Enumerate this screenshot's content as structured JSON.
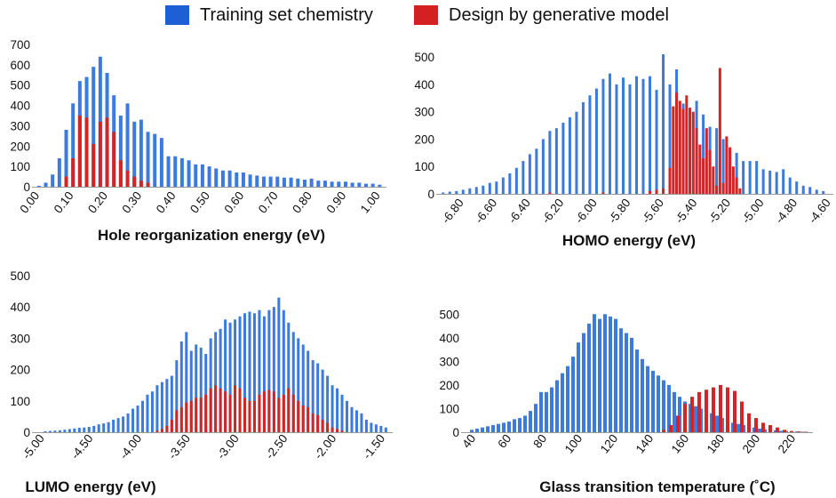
{
  "legend": {
    "items": [
      {
        "label": "Training set chemistry",
        "color": "#1f5fd6"
      },
      {
        "label": "Design by generative model",
        "color": "#d42020"
      }
    ]
  },
  "colors": {
    "training": "#3b7be0",
    "design": "#d42525",
    "axis": "#9a9a9a"
  },
  "chart_data": [
    {
      "type": "bar",
      "title": "",
      "xlabel": "Hole reorganization energy (eV)",
      "ylabel": "",
      "xlim": [
        0.0,
        1.03
      ],
      "ylim": [
        0,
        700
      ],
      "xticks": [
        0.0,
        0.1,
        0.2,
        0.3,
        0.4,
        0.5,
        0.6,
        0.7,
        0.8,
        0.9,
        1.0
      ],
      "xtick_labels": [
        "0.00",
        "0.10",
        "0.20",
        "0.30",
        "0.40",
        "0.50",
        "0.60",
        "0.70",
        "0.80",
        "0.90",
        "1.00"
      ],
      "yticks": [
        0,
        100,
        200,
        300,
        400,
        500,
        600,
        700
      ],
      "ytick_labels": [
        "0",
        "100",
        "200",
        "300",
        "400",
        "500",
        "600",
        "700"
      ],
      "series": [
        {
          "name": "Training set chemistry",
          "color_key": "training",
          "x": [
            0.01,
            0.03,
            0.05,
            0.07,
            0.09,
            0.11,
            0.13,
            0.15,
            0.17,
            0.19,
            0.21,
            0.23,
            0.25,
            0.27,
            0.29,
            0.31,
            0.33,
            0.35,
            0.37,
            0.39,
            0.41,
            0.43,
            0.45,
            0.47,
            0.49,
            0.51,
            0.53,
            0.55,
            0.57,
            0.59,
            0.61,
            0.63,
            0.65,
            0.67,
            0.69,
            0.71,
            0.73,
            0.75,
            0.77,
            0.79,
            0.81,
            0.83,
            0.85,
            0.87,
            0.89,
            0.91,
            0.93,
            0.95,
            0.97,
            0.99,
            1.01
          ],
          "values": [
            5,
            20,
            60,
            140,
            280,
            410,
            520,
            540,
            590,
            640,
            560,
            450,
            350,
            410,
            320,
            330,
            270,
            260,
            240,
            150,
            150,
            140,
            130,
            110,
            110,
            100,
            90,
            80,
            80,
            70,
            70,
            60,
            55,
            50,
            50,
            50,
            45,
            45,
            40,
            35,
            40,
            30,
            30,
            25,
            25,
            25,
            20,
            20,
            15,
            15,
            10
          ]
        },
        {
          "name": "Design by generative model",
          "color_key": "design",
          "x": [
            0.09,
            0.11,
            0.13,
            0.15,
            0.17,
            0.19,
            0.21,
            0.23,
            0.25,
            0.27,
            0.29,
            0.31,
            0.33
          ],
          "values": [
            50,
            140,
            350,
            340,
            210,
            320,
            340,
            270,
            130,
            80,
            50,
            30,
            20
          ]
        }
      ]
    },
    {
      "type": "bar",
      "title": "",
      "xlabel": "HOMO energy (eV)",
      "ylabel": "",
      "xlim": [
        -6.92,
        -4.56
      ],
      "ylim": [
        0,
        520
      ],
      "xticks": [
        -6.8,
        -6.6,
        -6.4,
        -6.2,
        -6.0,
        -5.8,
        -5.6,
        -5.4,
        -5.2,
        -5.0,
        -4.8,
        -4.6
      ],
      "xtick_labels": [
        "-6.80",
        "-6.60",
        "-6.40",
        "-6.20",
        "-6.00",
        "-5.80",
        "-5.60",
        "-5.40",
        "-5.20",
        "-5.00",
        "-4.80",
        "-4.60"
      ],
      "yticks": [
        0,
        100,
        200,
        300,
        400,
        500
      ],
      "ytick_labels": [
        "0",
        "100",
        "200",
        "300",
        "400",
        "500"
      ],
      "series": [
        {
          "name": "Training set chemistry",
          "color_key": "training",
          "x": [
            -6.9,
            -6.86,
            -6.82,
            -6.78,
            -6.74,
            -6.7,
            -6.66,
            -6.62,
            -6.58,
            -6.54,
            -6.5,
            -6.46,
            -6.42,
            -6.38,
            -6.34,
            -6.3,
            -6.26,
            -6.22,
            -6.18,
            -6.14,
            -6.1,
            -6.06,
            -6.02,
            -5.98,
            -5.94,
            -5.9,
            -5.86,
            -5.82,
            -5.78,
            -5.74,
            -5.7,
            -5.66,
            -5.62,
            -5.58,
            -5.54,
            -5.5,
            -5.46,
            -5.42,
            -5.38,
            -5.34,
            -5.3,
            -5.26,
            -5.22,
            -5.18,
            -5.14,
            -5.1,
            -5.06,
            -5.02,
            -4.98,
            -4.94,
            -4.9,
            -4.86,
            -4.82,
            -4.78,
            -4.74,
            -4.7,
            -4.66,
            -4.62
          ],
          "values": [
            5,
            8,
            10,
            15,
            20,
            25,
            30,
            40,
            45,
            60,
            75,
            95,
            120,
            145,
            165,
            200,
            230,
            240,
            260,
            280,
            300,
            335,
            360,
            385,
            420,
            440,
            400,
            425,
            400,
            430,
            420,
            430,
            380,
            510,
            400,
            455,
            330,
            310,
            340,
            290,
            245,
            240,
            200,
            160,
            150,
            120,
            120,
            120,
            90,
            85,
            80,
            90,
            60,
            45,
            30,
            25,
            15,
            10
          ]
        },
        {
          "name": "Design by generative model",
          "color_key": "design",
          "x": [
            -6.26,
            -5.94,
            -5.66,
            -5.62,
            -5.58,
            -5.54,
            -5.52,
            -5.5,
            -5.48,
            -5.46,
            -5.44,
            -5.42,
            -5.4,
            -5.38,
            -5.36,
            -5.34,
            -5.32,
            -5.3,
            -5.28,
            -5.26,
            -5.24,
            -5.22,
            -5.2,
            -5.18,
            -5.16,
            -5.14,
            -5.12
          ],
          "values": [
            5,
            5,
            10,
            15,
            20,
            95,
            320,
            370,
            340,
            310,
            360,
            315,
            300,
            240,
            180,
            130,
            240,
            160,
            100,
            30,
            460,
            40,
            210,
            170,
            100,
            60,
            20
          ]
        }
      ]
    },
    {
      "type": "bar",
      "title": "",
      "xlabel": "LUMO energy (eV)",
      "ylabel": "",
      "xlim": [
        -5.05,
        -1.38
      ],
      "ylim": [
        0,
        500
      ],
      "xticks": [
        -5.0,
        -4.5,
        -4.0,
        -3.5,
        -3.0,
        -2.5,
        -2.0,
        -1.5
      ],
      "xtick_labels": [
        "-5.00",
        "-4.50",
        "-4.00",
        "-3.50",
        "-3.00",
        "-2.50",
        "-2.00",
        "-1.50"
      ],
      "yticks": [
        0,
        100,
        200,
        300,
        400,
        500
      ],
      "ytick_labels": [
        "0",
        "100",
        "200",
        "300",
        "400",
        "500"
      ],
      "series": [
        {
          "name": "Training set chemistry",
          "color_key": "training",
          "x": [
            -4.95,
            -4.9,
            -4.85,
            -4.8,
            -4.75,
            -4.7,
            -4.65,
            -4.6,
            -4.55,
            -4.5,
            -4.45,
            -4.4,
            -4.35,
            -4.3,
            -4.25,
            -4.2,
            -4.15,
            -4.1,
            -4.05,
            -4.0,
            -3.95,
            -3.9,
            -3.85,
            -3.8,
            -3.75,
            -3.7,
            -3.65,
            -3.6,
            -3.55,
            -3.5,
            -3.45,
            -3.4,
            -3.35,
            -3.3,
            -3.25,
            -3.2,
            -3.15,
            -3.1,
            -3.05,
            -3.0,
            -2.95,
            -2.9,
            -2.85,
            -2.8,
            -2.75,
            -2.7,
            -2.65,
            -2.6,
            -2.55,
            -2.5,
            -2.45,
            -2.4,
            -2.35,
            -2.3,
            -2.25,
            -2.2,
            -2.15,
            -2.1,
            -2.05,
            -2.0,
            -1.95,
            -1.9,
            -1.85,
            -1.8,
            -1.75,
            -1.7,
            -1.65,
            -1.6,
            -1.55,
            -1.5,
            -1.45
          ],
          "values": [
            3,
            4,
            5,
            6,
            8,
            10,
            12,
            14,
            15,
            17,
            20,
            25,
            28,
            32,
            40,
            45,
            50,
            60,
            75,
            85,
            100,
            120,
            130,
            150,
            160,
            170,
            180,
            230,
            290,
            320,
            260,
            280,
            270,
            250,
            300,
            320,
            330,
            360,
            350,
            360,
            370,
            380,
            385,
            380,
            390,
            370,
            390,
            400,
            430,
            390,
            350,
            320,
            300,
            280,
            260,
            230,
            220,
            200,
            180,
            150,
            140,
            120,
            100,
            80,
            70,
            60,
            40,
            30,
            25,
            20,
            15
          ]
        },
        {
          "name": "Design by generative model",
          "color_key": "design",
          "x": [
            -3.8,
            -3.75,
            -3.7,
            -3.65,
            -3.6,
            -3.55,
            -3.5,
            -3.45,
            -3.4,
            -3.35,
            -3.3,
            -3.25,
            -3.2,
            -3.15,
            -3.1,
            -3.05,
            -3.0,
            -2.95,
            -2.9,
            -2.85,
            -2.8,
            -2.75,
            -2.7,
            -2.65,
            -2.6,
            -2.55,
            -2.5,
            -2.45,
            -2.4,
            -2.35,
            -2.3,
            -2.25,
            -2.2,
            -2.15,
            -2.1,
            -2.05,
            -2.0,
            -1.95,
            -1.9
          ],
          "values": [
            5,
            10,
            20,
            40,
            70,
            80,
            95,
            100,
            110,
            110,
            120,
            140,
            150,
            140,
            130,
            120,
            150,
            140,
            110,
            100,
            100,
            120,
            130,
            135,
            130,
            110,
            120,
            140,
            120,
            100,
            85,
            80,
            60,
            55,
            40,
            30,
            15,
            10,
            5
          ]
        }
      ]
    },
    {
      "type": "bar",
      "title": "",
      "xlabel": "Glass transition temperature (˚C)",
      "ylabel": "",
      "xlim": [
        36,
        232
      ],
      "ylim": [
        0,
        550
      ],
      "xticks": [
        40,
        60,
        80,
        100,
        120,
        140,
        160,
        180,
        200,
        220
      ],
      "xtick_labels": [
        "40",
        "60",
        "80",
        "100",
        "120",
        "140",
        "160",
        "180",
        "200",
        "220"
      ],
      "yticks": [
        0,
        100,
        200,
        300,
        400,
        500
      ],
      "ytick_labels": [
        "0",
        "100",
        "200",
        "300",
        "400",
        "500"
      ],
      "series": [
        {
          "name": "Training set chemistry",
          "color_key": "training",
          "x": [
            40,
            43,
            46,
            49,
            52,
            55,
            58,
            61,
            64,
            67,
            70,
            73,
            76,
            79,
            82,
            85,
            88,
            91,
            94,
            97,
            100,
            103,
            106,
            109,
            112,
            115,
            118,
            121,
            124,
            127,
            130,
            133,
            136,
            139,
            142,
            145,
            148,
            151,
            154,
            157,
            160,
            163,
            166,
            169,
            172,
            175,
            178,
            181,
            184,
            187,
            190,
            193,
            196,
            199,
            202,
            205,
            208,
            211,
            214,
            217,
            220,
            223,
            226
          ],
          "values": [
            10,
            15,
            20,
            25,
            30,
            35,
            40,
            45,
            55,
            60,
            70,
            90,
            120,
            170,
            170,
            190,
            220,
            250,
            280,
            320,
            380,
            420,
            460,
            500,
            480,
            500,
            490,
            480,
            440,
            420,
            400,
            350,
            310,
            280,
            260,
            240,
            220,
            200,
            170,
            150,
            130,
            120,
            110,
            100,
            90,
            80,
            70,
            60,
            50,
            40,
            35,
            30,
            25,
            20,
            15,
            12,
            10,
            8,
            6,
            5,
            4,
            3,
            2
          ]
        },
        {
          "name": "Design by generative model",
          "color_key": "design",
          "x": [
            148,
            152,
            156,
            160,
            164,
            168,
            172,
            176,
            180,
            184,
            188,
            192,
            196,
            200,
            204,
            208,
            212,
            216,
            220,
            224,
            228
          ],
          "values": [
            10,
            30,
            70,
            120,
            150,
            170,
            180,
            190,
            200,
            190,
            175,
            130,
            80,
            60,
            40,
            30,
            20,
            10,
            5,
            3,
            2
          ]
        }
      ]
    }
  ]
}
